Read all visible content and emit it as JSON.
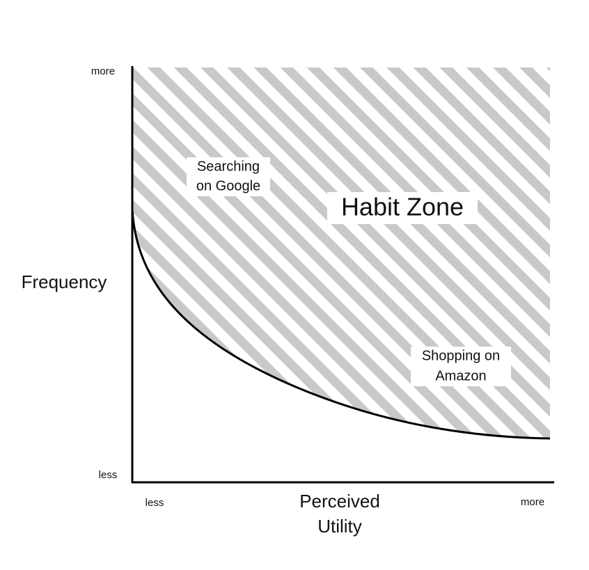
{
  "y_axis": {
    "label": "Frequency",
    "high": "more",
    "low": "less"
  },
  "x_axis": {
    "label_lines": [
      "Perceived",
      "Utility"
    ],
    "low": "less",
    "high": "more"
  },
  "zone": {
    "label": "Habit Zone"
  },
  "examples": [
    {
      "label_lines": [
        "Searching",
        "on Google"
      ]
    },
    {
      "label_lines": [
        "Shopping on",
        "Amazon"
      ]
    }
  ]
}
